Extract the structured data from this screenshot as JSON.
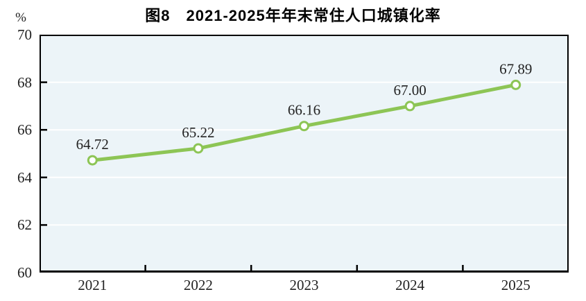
{
  "figure": {
    "title": "图8　2021-2025年年末常住人口城镇化率",
    "unit_label": "%"
  },
  "chart_data": {
    "type": "line",
    "title": "图8　2021-2025年年末常住人口城镇化率",
    "categories": [
      "2021",
      "2022",
      "2023",
      "2024",
      "2025"
    ],
    "series": [
      {
        "name": "年末常住人口城镇化率",
        "values": [
          64.72,
          65.22,
          66.16,
          67.0,
          67.89
        ]
      }
    ],
    "data_labels": [
      "64.72",
      "65.22",
      "66.16",
      "67.00",
      "67.89"
    ],
    "xlabel": "",
    "ylabel": "%",
    "ylim": [
      60,
      70
    ],
    "yticks": [
      60,
      62,
      64,
      66,
      68,
      70
    ],
    "grid": "horizontal",
    "legend": "none",
    "colors": {
      "line": "#8dc555",
      "marker_fill": "#ffffff",
      "plot_bg": "#ecf4f8",
      "gridline": "#ffffff",
      "axis": "#000000",
      "text": "#222222"
    }
  }
}
